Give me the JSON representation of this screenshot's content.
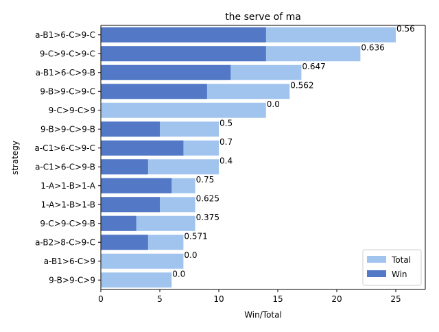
{
  "chart_data": {
    "type": "bar",
    "orientation": "horizontal",
    "title": "the serve of ma",
    "xlabel": "Win/Total",
    "ylabel": "strategy",
    "xlim": [
      0,
      27.5
    ],
    "xticks": [
      0,
      5,
      10,
      15,
      20,
      25
    ],
    "grid": false,
    "legend_position": "lower-right",
    "categories": [
      "a-B1>6-C>9-C",
      "9-C>9-C>9-C",
      "a-B1>6-C>9-B",
      "9-B>9-C>9-C",
      "9-C>9-C>9",
      "9-B>9-C>9-B",
      "a-C1>6-C>9-C",
      "a-C1>6-C>9-B",
      "1-A>1-B>1-A",
      "1-A>1-B>1-B",
      "9-C>9-C>9-B",
      "a-B2>8-C>9-C",
      "a-B1>6-C>9",
      "9-B>9-C>9"
    ],
    "series": [
      {
        "name": "Total",
        "color": "#a1c4ee",
        "values": [
          25,
          22,
          17,
          16,
          14,
          10,
          10,
          10,
          8,
          8,
          8,
          7,
          7,
          6
        ]
      },
      {
        "name": "Win",
        "color": "#5378c6",
        "values": [
          14,
          14,
          11,
          9,
          0,
          5,
          7,
          4,
          6,
          5,
          3,
          4,
          0,
          0
        ]
      }
    ],
    "data_labels": [
      "0.56",
      "0.636",
      "0.647",
      "0.562",
      "0.0",
      "0.5",
      "0.7",
      "0.4",
      "0.75",
      "0.625",
      "0.375",
      "0.571",
      "0.0",
      "0.0"
    ]
  }
}
